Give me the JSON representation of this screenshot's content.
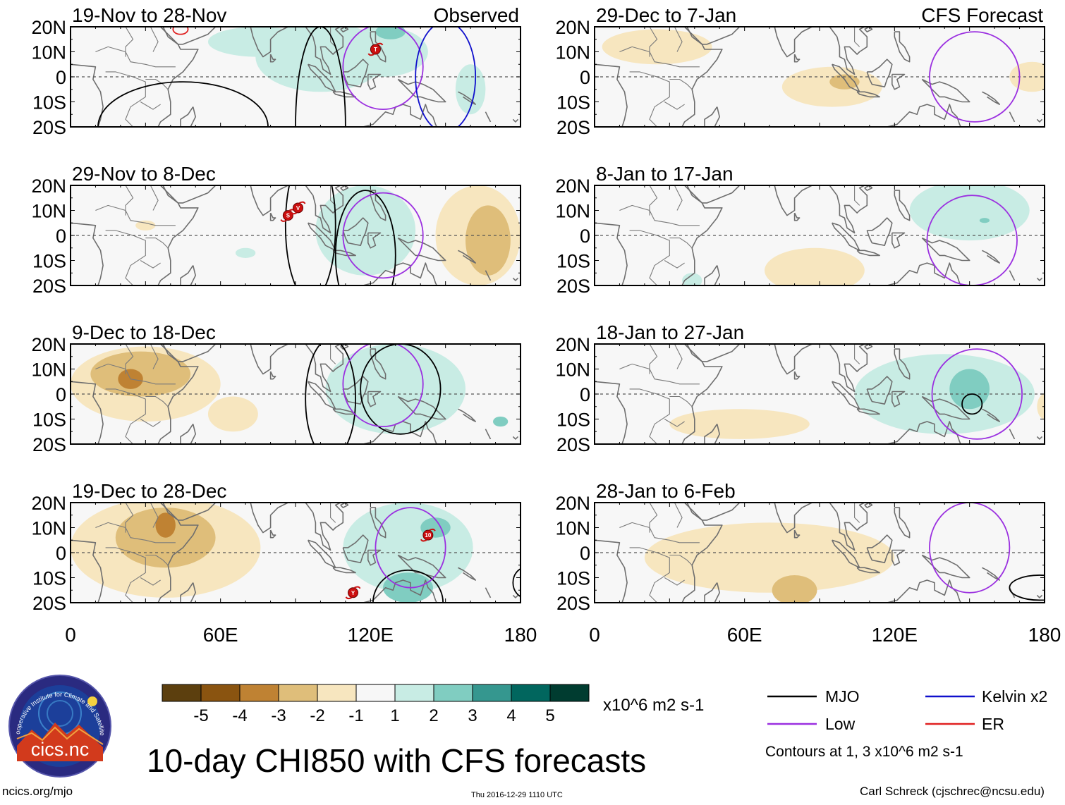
{
  "chart_data": {
    "type": "contour-map-panels",
    "title": "10-day CHI850 with CFS forecasts",
    "units": "x10^6 m2 s-1",
    "lat_ticks": [
      "20N",
      "10N",
      "0",
      "10S",
      "20S"
    ],
    "lon_ticks": [
      "0",
      "60E",
      "120E",
      "180"
    ],
    "lat_range": [
      -20,
      20
    ],
    "lon_range": [
      0,
      180
    ],
    "colorbar": {
      "colors": [
        "#5c3f0e",
        "#8a5410",
        "#bf8233",
        "#dfbe7a",
        "#f7e6bf",
        "#f7f7f7",
        "#c8ece4",
        "#80cdc1",
        "#35978f",
        "#01665e",
        "#003c30"
      ],
      "labels": [
        "-5",
        "-4",
        "-3",
        "-2",
        "-1",
        "1",
        "2",
        "3",
        "4",
        "5"
      ]
    },
    "legend": {
      "items": [
        {
          "label": "MJO",
          "color": "#000000"
        },
        {
          "label": "Kelvin x2",
          "color": "#1010cc"
        },
        {
          "label": "Low",
          "color": "#9b30e0"
        },
        {
          "label": "ER",
          "color": "#e02020"
        }
      ],
      "note": "Contours at 1, 3 x10^6 m2 s-1"
    },
    "panels": [
      {
        "title": "19-Nov to 28-Nov",
        "tag": "Observed",
        "col": 0,
        "row": 0,
        "blobs": [
          {
            "lon": 75,
            "lat": 14,
            "rx": 20,
            "ry": 6,
            "v": 1
          },
          {
            "lon": 100,
            "lat": 8,
            "rx": 26,
            "ry": 14,
            "v": 1
          },
          {
            "lon": 125,
            "lat": 10,
            "rx": 18,
            "ry": 10,
            "v": 1
          },
          {
            "lon": 128,
            "lat": 18,
            "rx": 6,
            "ry": 3,
            "v": 2
          },
          {
            "lon": 160,
            "lat": -5,
            "rx": 6,
            "ry": 10,
            "v": 1
          }
        ],
        "contours": [
          {
            "type": "MJO",
            "lon": 45,
            "lat": -20,
            "rx": 34,
            "ry": 18
          },
          {
            "type": "MJO",
            "lon": 100,
            "lat": -20,
            "rx": 10,
            "ry": 40
          },
          {
            "type": "Low",
            "lon": 125,
            "lat": 4,
            "rx": 16,
            "ry": 17
          },
          {
            "type": "Kelvin",
            "lon": 150,
            "lat": 0,
            "rx": 12,
            "ry": 22
          },
          {
            "type": "ER",
            "lon": 44,
            "lat": 19,
            "rx": 3,
            "ry": 2
          }
        ],
        "storms": [
          {
            "lon": 122,
            "lat": 11,
            "label": "T"
          }
        ]
      },
      {
        "title": "29-Nov to 8-Dec",
        "tag": "",
        "col": 0,
        "row": 1,
        "blobs": [
          {
            "lon": 118,
            "lat": 2,
            "rx": 20,
            "ry": 18,
            "v": 1
          },
          {
            "lon": 70,
            "lat": -7,
            "rx": 4,
            "ry": 2,
            "v": 1
          },
          {
            "lon": 163,
            "lat": 0,
            "rx": 17,
            "ry": 20,
            "v": -1
          },
          {
            "lon": 167,
            "lat": -2,
            "rx": 9,
            "ry": 14,
            "v": -2
          },
          {
            "lon": 30,
            "lat": 4,
            "rx": 4,
            "ry": 2,
            "v": -1
          }
        ],
        "contours": [
          {
            "type": "MJO",
            "lon": 96,
            "lat": 4,
            "rx": 10,
            "ry": 30
          },
          {
            "type": "MJO",
            "lon": 118,
            "lat": -8,
            "rx": 12,
            "ry": 26
          },
          {
            "type": "Low",
            "lon": 125,
            "lat": 0,
            "rx": 16,
            "ry": 17
          }
        ],
        "storms": [
          {
            "lon": 87,
            "lat": 8,
            "label": "S"
          },
          {
            "lon": 91,
            "lat": 11,
            "label": "V"
          }
        ]
      },
      {
        "title": "9-Dec to 18-Dec",
        "tag": "",
        "col": 0,
        "row": 2,
        "blobs": [
          {
            "lon": 30,
            "lat": 4,
            "rx": 30,
            "ry": 15,
            "v": -1
          },
          {
            "lon": 28,
            "lat": 8,
            "rx": 20,
            "ry": 9,
            "v": -2
          },
          {
            "lon": 24,
            "lat": 6,
            "rx": 5,
            "ry": 4,
            "v": -3
          },
          {
            "lon": 65,
            "lat": -8,
            "rx": 10,
            "ry": 7,
            "v": -1
          },
          {
            "lon": 130,
            "lat": 2,
            "rx": 28,
            "ry": 18,
            "v": 1
          },
          {
            "lon": 172,
            "lat": -11,
            "rx": 3,
            "ry": 2,
            "v": 2
          }
        ],
        "contours": [
          {
            "type": "MJO",
            "lon": 104,
            "lat": -2,
            "rx": 10,
            "ry": 24
          },
          {
            "type": "MJO",
            "lon": 132,
            "lat": 2,
            "rx": 16,
            "ry": 18
          },
          {
            "type": "Low",
            "lon": 125,
            "lat": 4,
            "rx": 16,
            "ry": 17
          }
        ],
        "storms": []
      },
      {
        "title": "19-Dec to 28-Dec",
        "tag": "",
        "col": 0,
        "row": 3,
        "blobs": [
          {
            "lon": 38,
            "lat": 2,
            "rx": 38,
            "ry": 20,
            "v": -1
          },
          {
            "lon": 38,
            "lat": 6,
            "rx": 20,
            "ry": 12,
            "v": -2
          },
          {
            "lon": 38,
            "lat": 11,
            "rx": 4,
            "ry": 5,
            "v": -3
          },
          {
            "lon": 135,
            "lat": 2,
            "rx": 26,
            "ry": 18,
            "v": 1
          },
          {
            "lon": 135,
            "lat": -14,
            "rx": 10,
            "ry": 6,
            "v": 2
          },
          {
            "lon": 146,
            "lat": 10,
            "rx": 6,
            "ry": 4,
            "v": 2
          }
        ],
        "contours": [
          {
            "type": "MJO",
            "lon": 135,
            "lat": -20,
            "rx": 14,
            "ry": 13
          },
          {
            "type": "MJO",
            "lon": 182,
            "lat": -12,
            "rx": 5,
            "ry": 6
          },
          {
            "type": "Low",
            "lon": 136,
            "lat": 2,
            "rx": 14,
            "ry": 16
          }
        ],
        "storms": [
          {
            "lon": 143,
            "lat": 7,
            "label": "10"
          },
          {
            "lon": 113,
            "lat": -16,
            "label": "Y"
          }
        ]
      },
      {
        "title": "29-Dec to 7-Jan",
        "tag": "CFS Forecast",
        "col": 1,
        "row": 0,
        "blobs": [
          {
            "lon": 25,
            "lat": 12,
            "rx": 22,
            "ry": 7,
            "v": -1
          },
          {
            "lon": 95,
            "lat": -4,
            "rx": 20,
            "ry": 8,
            "v": -1
          },
          {
            "lon": 100,
            "lat": -2,
            "rx": 6,
            "ry": 3,
            "v": -2
          },
          {
            "lon": 175,
            "lat": 0,
            "rx": 9,
            "ry": 6,
            "v": -1
          }
        ],
        "contours": [
          {
            "type": "Low",
            "lon": 152,
            "lat": 0,
            "rx": 18,
            "ry": 18
          }
        ],
        "storms": []
      },
      {
        "title": "8-Jan to 17-Jan",
        "tag": "",
        "col": 1,
        "row": 1,
        "blobs": [
          {
            "lon": 150,
            "lat": 10,
            "rx": 24,
            "ry": 12,
            "v": 1
          },
          {
            "lon": 156,
            "lat": 6,
            "rx": 2,
            "ry": 1,
            "v": 2
          },
          {
            "lon": 88,
            "lat": -14,
            "rx": 20,
            "ry": 9,
            "v": -1
          },
          {
            "lon": 39,
            "lat": -18,
            "rx": 4,
            "ry": 3,
            "v": 1
          }
        ],
        "contours": [
          {
            "type": "Low",
            "lon": 151,
            "lat": -2,
            "rx": 18,
            "ry": 18
          }
        ],
        "storms": []
      },
      {
        "title": "18-Jan to 27-Jan",
        "tag": "",
        "col": 1,
        "row": 2,
        "blobs": [
          {
            "lon": 140,
            "lat": 0,
            "rx": 36,
            "ry": 16,
            "v": 1
          },
          {
            "lon": 150,
            "lat": 2,
            "rx": 8,
            "ry": 8,
            "v": 2
          },
          {
            "lon": 58,
            "lat": -12,
            "rx": 28,
            "ry": 6,
            "v": -1
          },
          {
            "lon": 180,
            "lat": -5,
            "rx": 3,
            "ry": 5,
            "v": -1
          }
        ],
        "contours": [
          {
            "type": "MJO",
            "lon": 151,
            "lat": -4,
            "rx": 4,
            "ry": 4
          },
          {
            "type": "Low",
            "lon": 153,
            "lat": 0,
            "rx": 18,
            "ry": 18
          }
        ],
        "storms": []
      },
      {
        "title": "28-Jan to 6-Feb",
        "tag": "",
        "col": 1,
        "row": 3,
        "blobs": [
          {
            "lon": 70,
            "lat": -2,
            "rx": 50,
            "ry": 14,
            "v": -1
          },
          {
            "lon": 80,
            "lat": -15,
            "rx": 9,
            "ry": 6,
            "v": -2
          }
        ],
        "contours": [
          {
            "type": "MJO",
            "lon": 178,
            "lat": -14,
            "rx": 12,
            "ry": 5
          },
          {
            "type": "Low",
            "lon": 150,
            "lat": 2,
            "rx": 16,
            "ry": 18
          }
        ],
        "storms": []
      }
    ]
  },
  "logo": {
    "text": "cics.nc",
    "ring_text": "Cooperative Institute for Climate and Satellites"
  },
  "footer": {
    "left": "ncics.org/mjo",
    "center": "Thu 2016-12-29 1110 UTC",
    "right": "Carl Schreck (cjschrec@ncsu.edu)"
  }
}
